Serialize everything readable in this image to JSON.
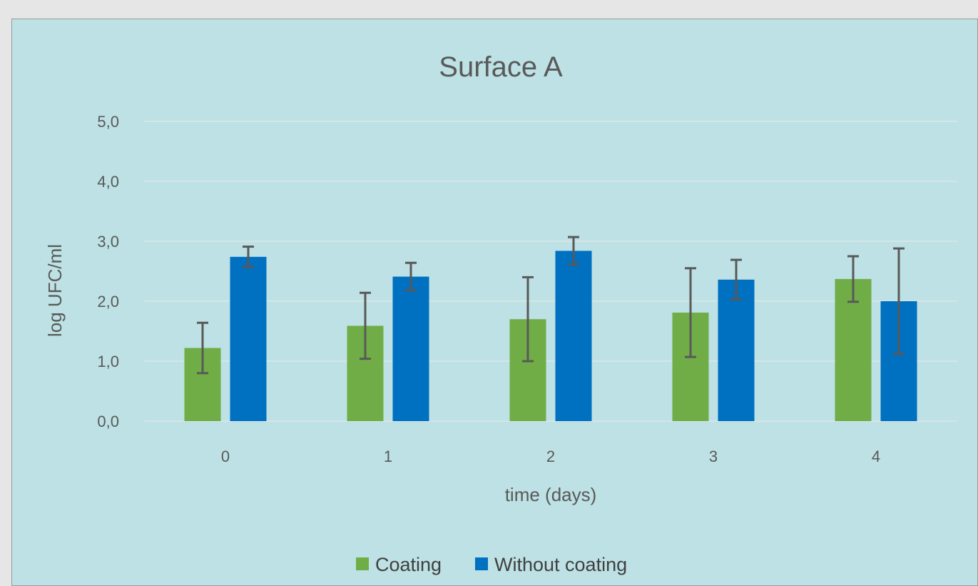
{
  "chart_data": {
    "type": "bar",
    "title": "Surface A",
    "xlabel": "time (days)",
    "ylabel": "log UFC/ml",
    "categories": [
      "0",
      "1",
      "2",
      "3",
      "4"
    ],
    "ylim": [
      0,
      5
    ],
    "yticks": [
      "0,0",
      "1,0",
      "2,0",
      "3,0",
      "4,0",
      "5,0"
    ],
    "ytick_values": [
      0,
      1,
      2,
      3,
      4,
      5
    ],
    "grid": true,
    "legend_position": "bottom",
    "series": [
      {
        "name": "Coating",
        "color": "#70ad47",
        "values": [
          1.22,
          1.59,
          1.7,
          1.81,
          2.37
        ],
        "error": [
          0.42,
          0.55,
          0.7,
          0.74,
          0.38
        ]
      },
      {
        "name": "Without coating",
        "color": "#0070c0",
        "values": [
          2.74,
          2.41,
          2.84,
          2.36,
          2.0
        ],
        "error": [
          0.17,
          0.23,
          0.23,
          0.33,
          0.88
        ]
      }
    ]
  }
}
